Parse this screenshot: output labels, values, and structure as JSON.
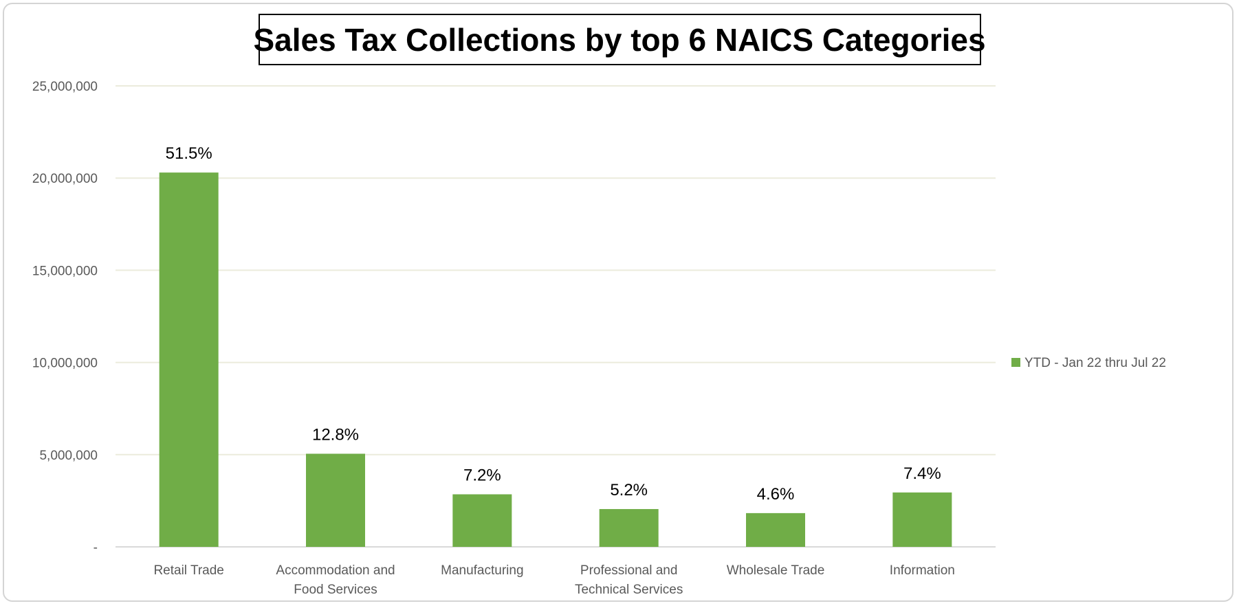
{
  "chart_data": {
    "type": "bar",
    "title": "Sales Tax Collections by top 6 NAICS Categories",
    "xlabel": "",
    "ylabel": "",
    "ylim": [
      0,
      25000000
    ],
    "yticks": [
      0,
      5000000,
      10000000,
      15000000,
      20000000,
      25000000
    ],
    "ytick_labels": [
      "-",
      "5,000,000",
      "10,000,000",
      "15,000,000",
      "20,000,000",
      "25,000,000"
    ],
    "categories": [
      [
        "Retail Trade"
      ],
      [
        "Accommodation and",
        "Food Services"
      ],
      [
        "Manufacturing"
      ],
      [
        "Professional and",
        "Technical Services"
      ],
      [
        "Wholesale Trade"
      ],
      [
        "Information"
      ]
    ],
    "series": [
      {
        "name": "YTD - Jan 22 thru Jul 22",
        "values": [
          20300000,
          5050000,
          2850000,
          2050000,
          1830000,
          2950000
        ],
        "data_labels": [
          "51.5%",
          "12.8%",
          "7.2%",
          "5.2%",
          "4.6%",
          "7.4%"
        ],
        "color": "#70ad47"
      }
    ],
    "grid": true,
    "gridline_color": "#ebebdc",
    "legend_position": "right"
  }
}
